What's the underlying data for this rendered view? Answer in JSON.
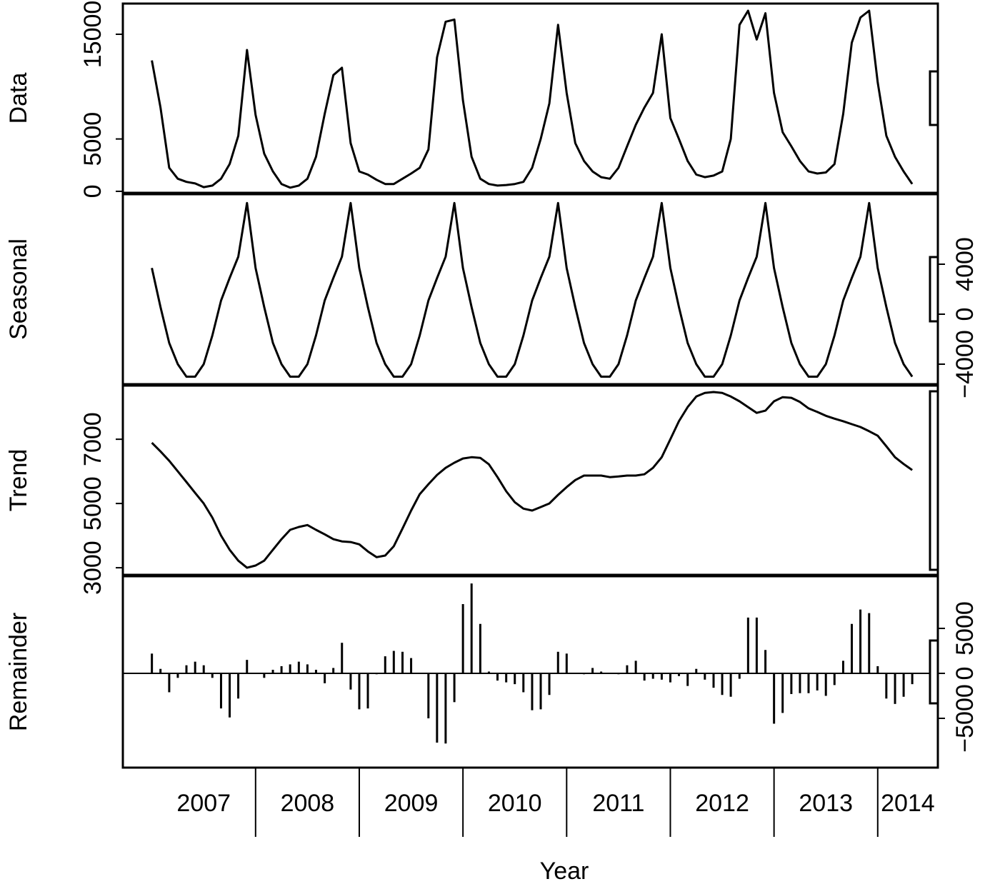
{
  "chart_data": {
    "type": "stl",
    "xlabel": "Year",
    "xlim": [
      2006.72,
      2014.58
    ],
    "xticks": [
      2008,
      2009,
      2010,
      2011,
      2012,
      2013,
      2014
    ],
    "categories": [
      "2007",
      "2008",
      "2009",
      "2010",
      "2011",
      "2012",
      "2013",
      "2014"
    ],
    "x": [
      2007.0,
      2007.083,
      2007.167,
      2007.25,
      2007.333,
      2007.417,
      2007.5,
      2007.583,
      2007.667,
      2007.75,
      2007.833,
      2007.917,
      2008.0,
      2008.083,
      2008.167,
      2008.25,
      2008.333,
      2008.417,
      2008.5,
      2008.583,
      2008.667,
      2008.75,
      2008.833,
      2008.917,
      2009.0,
      2009.083,
      2009.167,
      2009.25,
      2009.333,
      2009.417,
      2009.5,
      2009.583,
      2009.667,
      2009.75,
      2009.833,
      2009.917,
      2010.0,
      2010.083,
      2010.167,
      2010.25,
      2010.333,
      2010.417,
      2010.5,
      2010.583,
      2010.667,
      2010.75,
      2010.833,
      2010.917,
      2011.0,
      2011.083,
      2011.167,
      2011.25,
      2011.333,
      2011.417,
      2011.5,
      2011.583,
      2011.667,
      2011.75,
      2011.833,
      2011.917,
      2012.0,
      2012.083,
      2012.167,
      2012.25,
      2012.333,
      2012.417,
      2012.5,
      2012.583,
      2012.667,
      2012.75,
      2012.833,
      2012.917,
      2013.0,
      2013.083,
      2013.167,
      2013.25,
      2013.333,
      2013.417,
      2013.5,
      2013.583,
      2013.667,
      2013.75,
      2013.833,
      2013.917,
      2014.0,
      2014.083,
      2014.167,
      2014.25,
      2014.333
    ],
    "panels": [
      {
        "type": "line",
        "ylabel": "Data",
        "side": "left",
        "ylim": [
          -140,
          17930
        ],
        "yticks": [
          0,
          5000,
          15000
        ],
        "values": [
          12500,
          8000,
          2250,
          1200,
          900,
          750,
          400,
          550,
          1200,
          2600,
          5300,
          13500,
          7300,
          3600,
          1900,
          700,
          350,
          550,
          1200,
          3300,
          7400,
          11100,
          11800,
          4600,
          1900,
          1600,
          1100,
          700,
          700,
          1200,
          1700,
          2250,
          4000,
          12800,
          16200,
          16400,
          8700,
          3300,
          1200,
          700,
          550,
          600,
          700,
          900,
          2250,
          5000,
          8400,
          15900,
          9400,
          4600,
          2900,
          1900,
          1350,
          1200,
          2250,
          4300,
          6350,
          8000,
          9400,
          15000,
          7000,
          5000,
          2900,
          1600,
          1350,
          1500,
          1900,
          5000,
          15900,
          17250,
          14500,
          17000,
          9400,
          5650,
          4300,
          2900,
          1900,
          1700,
          1800,
          2600,
          7400,
          14200,
          16600,
          17250,
          10400,
          5300,
          3300,
          1900,
          700
        ]
      },
      {
        "type": "line",
        "ylabel": "Seasonal",
        "side": "right",
        "ylim": [
          -5600,
          9600
        ],
        "yticks": [
          {
            "value": -4000,
            "label": "−4000"
          },
          0,
          4000
        ],
        "values": [
          3700,
          570,
          -2300,
          -4000,
          -5000,
          -5000,
          -4000,
          -1700,
          1100,
          2900,
          4600,
          8900,
          3700,
          570,
          -2300,
          -4000,
          -5000,
          -5000,
          -4000,
          -1700,
          1100,
          2900,
          4600,
          8900,
          3700,
          570,
          -2300,
          -4000,
          -5000,
          -5000,
          -4000,
          -1700,
          1100,
          2900,
          4600,
          8900,
          3700,
          570,
          -2300,
          -4000,
          -5000,
          -5000,
          -4000,
          -1700,
          1100,
          2900,
          4600,
          8900,
          3700,
          570,
          -2300,
          -4000,
          -5000,
          -5000,
          -4000,
          -1700,
          1100,
          2900,
          4600,
          8900,
          3700,
          570,
          -2300,
          -4000,
          -5000,
          -5000,
          -4000,
          -1700,
          1100,
          2900,
          4600,
          8900,
          3700,
          570,
          -2300,
          -4000,
          -5000,
          -5000,
          -4000,
          -1700,
          1100,
          2900,
          4600,
          8900,
          3700,
          570,
          -2300,
          -4000,
          -5000
        ]
      },
      {
        "type": "line",
        "ylabel": "Trend",
        "side": "left",
        "ylim": [
          2780,
          8670
        ],
        "yticks": [
          3000,
          5000,
          7000
        ],
        "values": [
          6890,
          6620,
          6330,
          6000,
          5670,
          5330,
          5000,
          4560,
          4000,
          3560,
          3220,
          3000,
          3070,
          3220,
          3560,
          3890,
          4180,
          4270,
          4330,
          4180,
          4040,
          3890,
          3820,
          3800,
          3730,
          3510,
          3330,
          3380,
          3670,
          4220,
          4780,
          5290,
          5600,
          5890,
          6110,
          6270,
          6400,
          6440,
          6420,
          6220,
          5820,
          5380,
          5040,
          4840,
          4780,
          4890,
          5000,
          5270,
          5510,
          5730,
          5870,
          5870,
          5870,
          5820,
          5840,
          5870,
          5870,
          5910,
          6110,
          6440,
          7000,
          7560,
          8000,
          8330,
          8440,
          8470,
          8440,
          8330,
          8180,
          8000,
          7820,
          7890,
          8180,
          8310,
          8290,
          8160,
          7960,
          7850,
          7730,
          7640,
          7560,
          7470,
          7380,
          7250,
          7110,
          6780,
          6440,
          6230,
          6040
        ]
      },
      {
        "type": "bar",
        "ylabel": "Remainder",
        "side": "right",
        "ylim": [
          -10480,
          10800
        ],
        "yticks": [
          {
            "value": -5000,
            "label": "−5000"
          },
          0,
          5000
        ],
        "values": [
          2200,
          500,
          -2100,
          -500,
          900,
          1300,
          900,
          -500,
          -3900,
          -4900,
          -2800,
          1500,
          0,
          -500,
          400,
          800,
          1000,
          1300,
          1000,
          400,
          -1100,
          600,
          3400,
          -1800,
          -4000,
          -3900,
          -100,
          1900,
          2500,
          2400,
          1700,
          0,
          -5000,
          -7700,
          -7800,
          -3200,
          7700,
          10000,
          5500,
          200,
          -800,
          -1000,
          -1200,
          -2100,
          -4100,
          -4000,
          -2400,
          2400,
          2200,
          0,
          -100,
          600,
          200,
          0,
          -100,
          900,
          1400,
          -800,
          -600,
          -700,
          -1000,
          -300,
          -1400,
          500,
          -700,
          -1600,
          -2400,
          -2600,
          -600,
          6200,
          6200,
          2600,
          -5600,
          -4400,
          -2300,
          -2200,
          -2200,
          -1900,
          -2500,
          -1300,
          1400,
          5500,
          7100,
          6700,
          800,
          -2800,
          -3400,
          -2600,
          -1200
        ]
      }
    ]
  }
}
